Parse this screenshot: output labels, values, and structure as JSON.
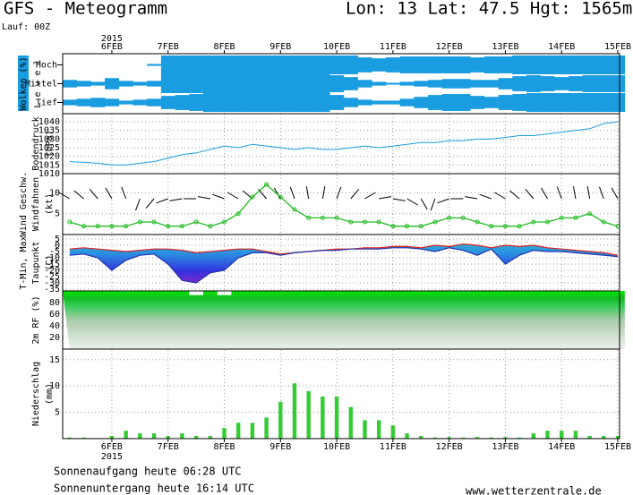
{
  "header": {
    "title": "GFS - Meteogramm",
    "location": "Lon: 13 Lat: 47.5 Hgt: 1565m",
    "run": "Lauf: 00Z"
  },
  "time_axis": {
    "year": "2015",
    "xlim": [
      -21,
      216
    ],
    "xticks": [
      {
        "value": 0,
        "label": "6FEB"
      },
      {
        "value": 24,
        "label": "7FEB"
      },
      {
        "value": 48,
        "label": "8FEB"
      },
      {
        "value": 72,
        "label": "9FEB"
      },
      {
        "value": 96,
        "label": "10FEB"
      },
      {
        "value": 120,
        "label": "11FEB"
      },
      {
        "value": 144,
        "label": "12FEB"
      },
      {
        "value": 168,
        "label": "13FEB"
      },
      {
        "value": 192,
        "label": "14FEB"
      },
      {
        "value": 216,
        "label": "15FEB"
      }
    ],
    "x": [
      -18,
      -12,
      -6,
      0,
      6,
      12,
      18,
      24,
      30,
      36,
      42,
      48,
      54,
      60,
      66,
      72,
      78,
      84,
      90,
      96,
      102,
      108,
      114,
      120,
      126,
      132,
      138,
      144,
      150,
      156,
      162,
      168,
      174,
      180,
      186,
      192,
      198,
      204,
      210,
      216
    ]
  },
  "chart_data": [
    {
      "type": "cloud-bands",
      "subtitle": "Wolken (%)",
      "title": "L e v e l",
      "series": [
        {
          "name": "Hoch",
          "color": "#1a9de0",
          "values": [
            0,
            0,
            0,
            0,
            0,
            0,
            10,
            100,
            100,
            100,
            100,
            100,
            100,
            100,
            100,
            100,
            100,
            100,
            100,
            100,
            100,
            80,
            70,
            80,
            90,
            90,
            90,
            90,
            90,
            80,
            90,
            90,
            100,
            100,
            100,
            100,
            100,
            100,
            100,
            100
          ]
        },
        {
          "name": "Mittel",
          "color": "#1a9de0",
          "values": [
            40,
            30,
            20,
            60,
            30,
            20,
            30,
            100,
            100,
            100,
            100,
            100,
            100,
            100,
            100,
            100,
            100,
            100,
            100,
            90,
            70,
            40,
            20,
            10,
            20,
            30,
            40,
            50,
            50,
            40,
            40,
            60,
            80,
            90,
            80,
            70,
            80,
            90,
            90,
            90
          ]
        },
        {
          "name": "Tief",
          "color": "#1a9de0",
          "values": [
            30,
            40,
            50,
            40,
            20,
            30,
            40,
            70,
            80,
            90,
            100,
            100,
            100,
            100,
            100,
            100,
            100,
            100,
            100,
            80,
            50,
            30,
            20,
            20,
            40,
            60,
            80,
            90,
            90,
            70,
            60,
            80,
            90,
            100,
            100,
            100,
            100,
            100,
            100,
            100
          ]
        }
      ]
    },
    {
      "type": "line",
      "title": "Bodendruck",
      "unit": "(hPa)",
      "color": "#1a9de0",
      "ylim": [
        1010,
        1044.7
      ],
      "yticks": [
        1010,
        1015,
        1020,
        1025,
        1030,
        1035,
        1040
      ],
      "grid": true,
      "values": [
        1017,
        1016.5,
        1016,
        1015,
        1015,
        1016,
        1017,
        1019,
        1021,
        1022,
        1024,
        1026,
        1025,
        1027,
        1026,
        1025,
        1024,
        1025,
        1024,
        1024,
        1025,
        1026,
        1025,
        1026,
        1027,
        1028,
        1028,
        1029,
        1029,
        1030,
        1030,
        1031,
        1032,
        1032,
        1033,
        1034,
        1035,
        1036,
        1039,
        1040
      ]
    },
    {
      "type": "wind",
      "subtitle": "Wind Geschw.",
      "title": "Windfahnen",
      "unit": "(kt)",
      "color": "#22bb22",
      "ylim": [
        0,
        14.6
      ],
      "yticks": [
        5,
        10
      ],
      "grid": true,
      "values": [
        3,
        2,
        2,
        2,
        2,
        3,
        3,
        2,
        2,
        3,
        2,
        3,
        5,
        9,
        12,
        9,
        6,
        4,
        4,
        4,
        3,
        3,
        3,
        2,
        2,
        2,
        3,
        4,
        4,
        3,
        2,
        2,
        2,
        3,
        3,
        4,
        4,
        5,
        3,
        2
      ],
      "direction": [
        300,
        310,
        320,
        330,
        340,
        200,
        220,
        250,
        260,
        270,
        280,
        290,
        300,
        310,
        320,
        330,
        340,
        350,
        10,
        20,
        40,
        60,
        80,
        100,
        120,
        150,
        200,
        250,
        270,
        280,
        290,
        300,
        310,
        320,
        330,
        340,
        350,
        350,
        340,
        330
      ]
    },
    {
      "type": "temperature",
      "subtitle": "T-Min, Max",
      "title": "Taupunkt",
      "unit": "(C)",
      "ylim": [
        -36.4,
        8.6
      ],
      "yticks": [
        5,
        0,
        -5,
        -10,
        -15,
        -20,
        -25,
        -30,
        -35
      ],
      "grid": true,
      "series": [
        {
          "name": "Max",
          "color": "#dd2222",
          "values": [
            -3,
            -2,
            -3,
            -4,
            -5,
            -4,
            -3,
            -3,
            -4,
            -6,
            -5,
            -4,
            -3,
            -3,
            -5,
            -7,
            -6,
            -5,
            -4,
            -3,
            -3,
            -2,
            -2,
            -1,
            -1,
            -2,
            0,
            -1,
            1,
            0,
            -2,
            0,
            -1,
            0,
            -2,
            -3,
            -4,
            -5,
            -6,
            -8
          ]
        },
        {
          "name": "Min",
          "color": "#2233aa",
          "values": [
            -8,
            -7,
            -10,
            -20,
            -12,
            -8,
            -7,
            -15,
            -28,
            -30,
            -22,
            -20,
            -10,
            -6,
            -6,
            -8,
            -6,
            -5,
            -4,
            -4,
            -3,
            -3,
            -3,
            -2,
            -2,
            -3,
            -5,
            -2,
            -4,
            -8,
            -3,
            -15,
            -8,
            -4,
            -5,
            -5,
            -6,
            -7,
            -8,
            -9
          ]
        }
      ]
    },
    {
      "type": "humidity",
      "title": "2m RF (%)",
      "ylim": [
        0,
        100
      ],
      "yticks": [
        20,
        40,
        60,
        80
      ],
      "grid": true,
      "values": [
        100,
        100,
        100,
        100,
        99,
        100,
        100,
        100,
        100,
        93,
        100,
        93,
        100,
        100,
        100,
        100,
        100,
        100,
        100,
        100,
        100,
        100,
        100,
        100,
        100,
        99,
        100,
        100,
        99,
        100,
        100,
        100,
        100,
        100,
        100,
        100,
        100,
        100,
        100,
        100
      ]
    },
    {
      "type": "bar",
      "title": "Niederschlag",
      "unit": "(mm)",
      "color": "#33cc33",
      "ylim": [
        0,
        17
      ],
      "yticks": [
        5,
        10,
        15
      ],
      "grid": true,
      "values": [
        0.2,
        0.2,
        0.1,
        0.5,
        1.5,
        1,
        1,
        0.5,
        1,
        0.5,
        0.5,
        2,
        3,
        3,
        4,
        7,
        10.5,
        9,
        8,
        8,
        6,
        3.5,
        3.5,
        2.5,
        1,
        0.5,
        0.2,
        0.3,
        0.2,
        0.3,
        0.2,
        0.3,
        0.2,
        1,
        1.5,
        1.5,
        1.5,
        0.5,
        0.5,
        0.5
      ]
    }
  ],
  "footer": {
    "sunrise": "Sonnenaufgang heute 06:28 UTC",
    "sunset": "Sonnenuntergang heute 16:14 UTC",
    "site": "www.wetterzentrale.de"
  }
}
